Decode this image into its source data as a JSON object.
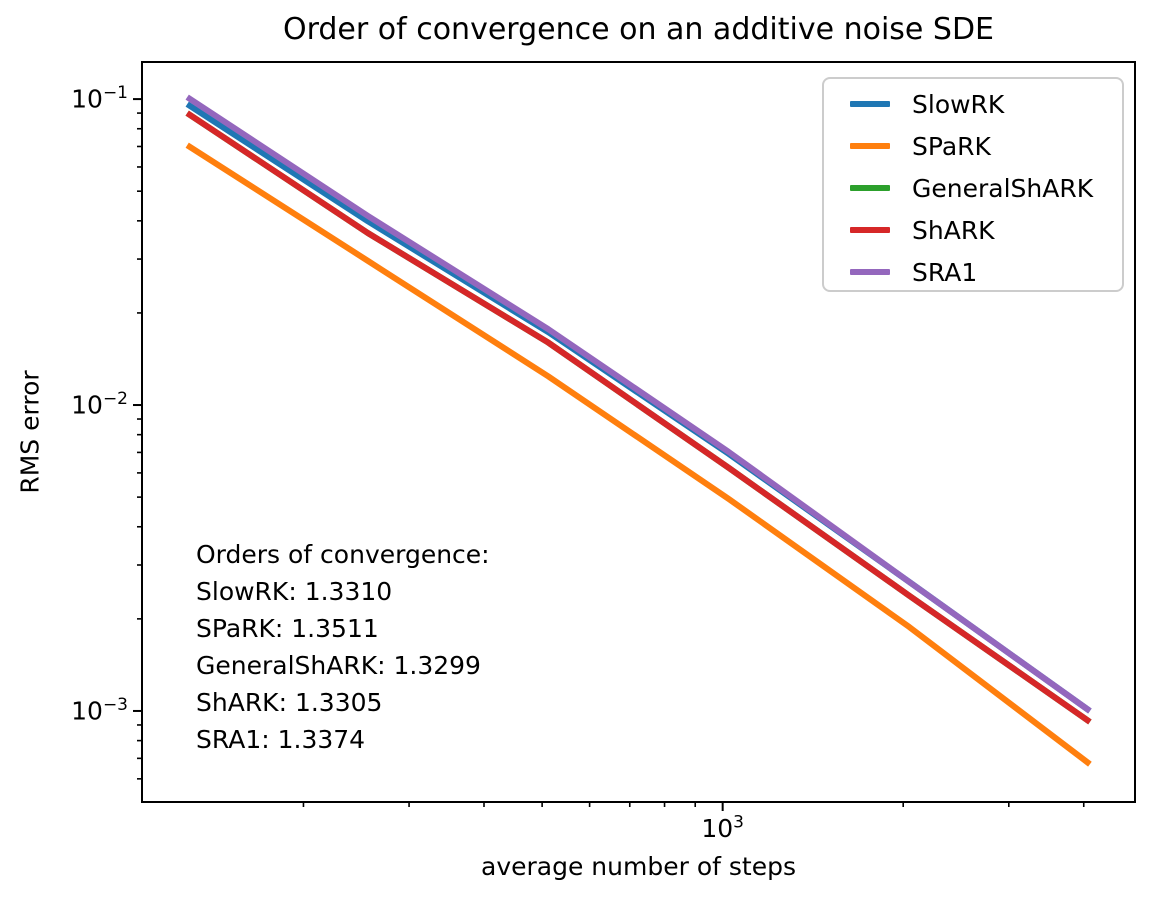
{
  "figure": {
    "title": "Order of convergence on an additive noise SDE",
    "xlabel": "average number of steps",
    "ylabel": "RMS error"
  },
  "chart_data": {
    "type": "line",
    "title": "Order of convergence on an additive noise SDE",
    "xlabel": "average number of steps",
    "ylabel": "RMS error",
    "x_scale": "log",
    "y_scale": "log",
    "grid": false,
    "legend_position": "upper right",
    "xlim": [
      107.6,
      4870
    ],
    "ylim": [
      0.000504,
      0.1322
    ],
    "x": [
      128,
      256,
      512,
      1024,
      2048,
      4096
    ],
    "series": [
      {
        "name": "SlowRK",
        "color": "#1f77b4",
        "values": [
          0.0963,
          0.0399,
          0.0173,
          0.00692,
          0.00264,
          0.001
        ]
      },
      {
        "name": "SPaRK",
        "color": "#ff7f0e",
        "values": [
          0.0707,
          0.0296,
          0.0124,
          0.00493,
          0.00188,
          0.00067
        ]
      },
      {
        "name": "GeneralShARK",
        "color": "#2ca02c",
        "values": [
          0.09,
          0.0365,
          0.016,
          0.00623,
          0.00238,
          0.000921
        ]
      },
      {
        "name": "ShARK",
        "color": "#d62728",
        "values": [
          0.09,
          0.0365,
          0.016,
          0.00623,
          0.00238,
          0.000921
        ]
      },
      {
        "name": "SRA1",
        "color": "#9467bd",
        "values": [
          0.1015,
          0.0415,
          0.0177,
          0.00702,
          0.00264,
          0.001
        ]
      }
    ],
    "x_major_ticks": [
      {
        "value": 1000,
        "base": "10",
        "exp": "3"
      }
    ],
    "y_major_ticks": [
      {
        "value": 0.1,
        "base": "10",
        "exp": "−1"
      },
      {
        "value": 0.01,
        "base": "10",
        "exp": "−2"
      },
      {
        "value": 0.001,
        "base": "10",
        "exp": "−3"
      }
    ]
  },
  "annotation": {
    "lines": [
      "Orders of convergence:",
      "SlowRK: 1.3310",
      "SPaRK: 1.3511",
      "GeneralShARK: 1.3299",
      "ShARK: 1.3305",
      "SRA1: 1.3374"
    ]
  }
}
